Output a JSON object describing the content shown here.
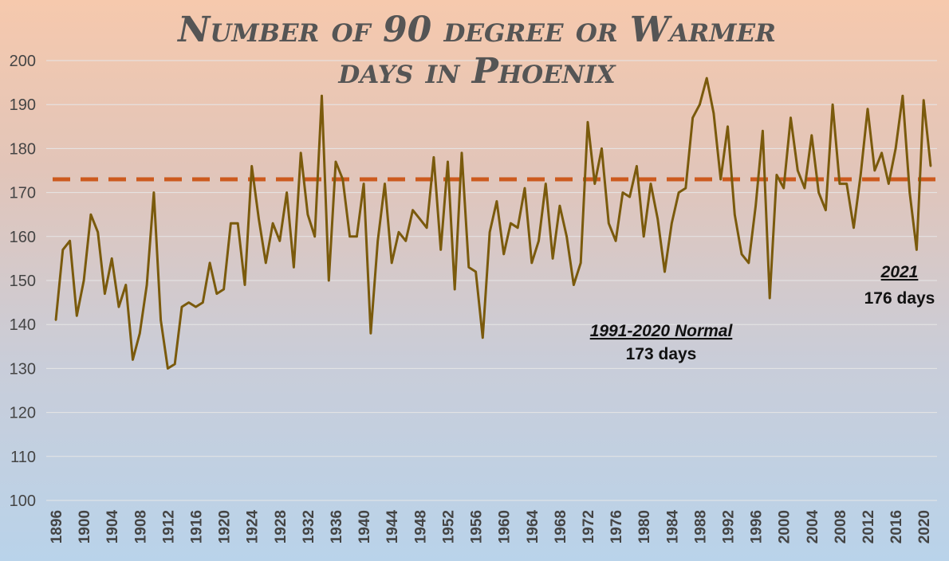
{
  "chart_data": {
    "type": "line",
    "title_line1": "Number of 90 degree or Warmer",
    "title_line2": "days in Phoenix",
    "xlabel": "",
    "ylabel": "",
    "ylim": [
      100,
      200
    ],
    "yticks": [
      100,
      110,
      120,
      130,
      140,
      150,
      160,
      170,
      180,
      190,
      200
    ],
    "xticks": [
      1896,
      1900,
      1904,
      1908,
      1912,
      1916,
      1920,
      1924,
      1928,
      1932,
      1936,
      1940,
      1944,
      1948,
      1952,
      1956,
      1960,
      1964,
      1968,
      1972,
      1976,
      1980,
      1984,
      1988,
      1992,
      1996,
      2000,
      2004,
      2008,
      2012,
      2016,
      2020
    ],
    "grid": true,
    "series": [
      {
        "color": "#7a5a0c",
        "x_start": 1896,
        "x_end": 2021,
        "values": [
          141,
          157,
          159,
          142,
          150,
          165,
          161,
          147,
          155,
          144,
          149,
          132,
          138,
          149,
          170,
          141,
          130,
          131,
          144,
          145,
          144,
          145,
          154,
          147,
          148,
          163,
          163,
          149,
          176,
          164,
          154,
          163,
          159,
          170,
          153,
          179,
          165,
          160,
          192,
          150,
          177,
          173,
          160,
          160,
          172,
          138,
          159,
          172,
          154,
          161,
          159,
          166,
          164,
          162,
          178,
          157,
          177,
          148,
          179,
          153,
          152,
          137,
          161,
          168,
          156,
          163,
          162,
          171,
          154,
          159,
          172,
          155,
          167,
          160,
          149,
          154,
          186,
          172,
          180,
          163,
          159,
          170,
          169,
          176,
          160,
          172,
          164,
          152,
          163,
          170,
          171,
          187,
          190,
          196,
          188,
          173,
          185,
          165,
          156,
          154,
          167,
          184,
          146,
          174,
          171,
          187,
          175,
          171,
          183,
          170,
          166,
          190,
          172,
          172,
          162,
          174,
          189,
          175,
          179,
          172,
          180,
          192,
          170,
          157,
          191,
          176
        ]
      },
      {
        "color": "#cc5a1e",
        "style": "dashed",
        "constant": 173
      }
    ],
    "annotations": [
      {
        "heading": "1991-2020 Normal",
        "text": "173 days"
      },
      {
        "heading": "2021",
        "text": "176 days"
      }
    ]
  }
}
